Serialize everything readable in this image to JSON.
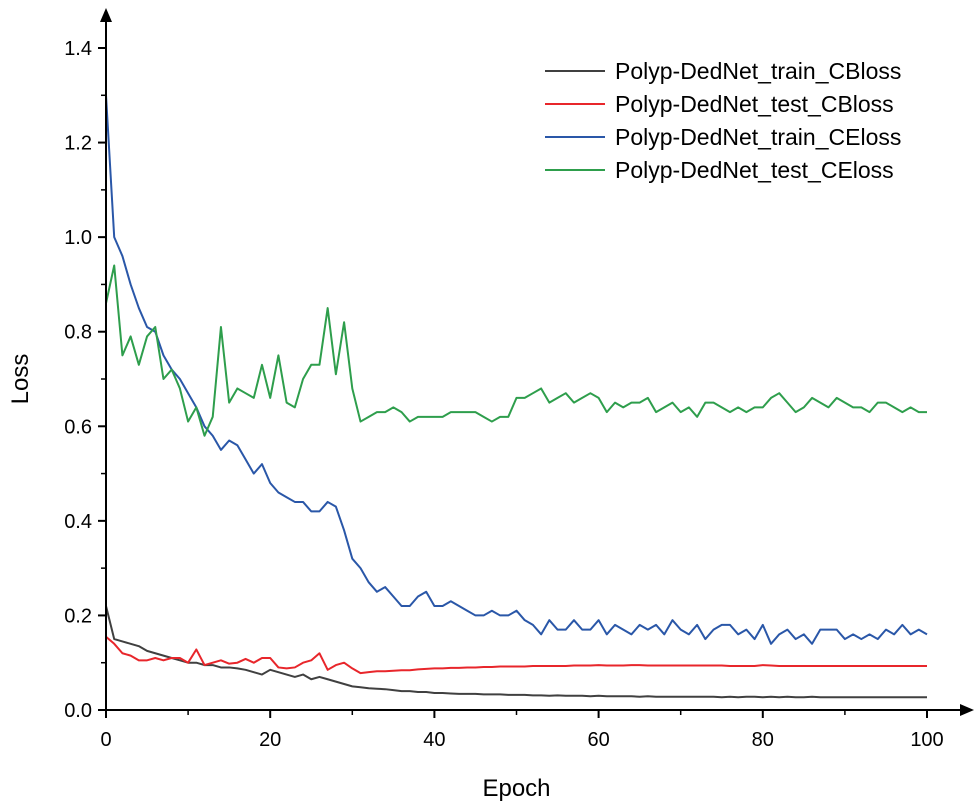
{
  "chart_data": {
    "type": "line",
    "title": "",
    "xlabel": "Epoch",
    "ylabel": "Loss",
    "xlim": [
      0,
      100
    ],
    "ylim": [
      0,
      1.4
    ],
    "xticks": [
      0,
      20,
      40,
      60,
      80,
      100
    ],
    "xtick_labels": [
      "0",
      "20",
      "40",
      "60",
      "80",
      "100"
    ],
    "yticks": [
      0,
      0.2,
      0.4,
      0.6,
      0.8,
      1.0,
      1.2,
      1.4
    ],
    "ytick_labels": [
      "0.0",
      "0.2",
      "0.4",
      "0.6",
      "0.8",
      "1.0",
      "1.2",
      "1.4"
    ],
    "grid": false,
    "legend_position": "top-right",
    "x": [
      0,
      1,
      2,
      3,
      4,
      5,
      6,
      7,
      8,
      9,
      10,
      11,
      12,
      13,
      14,
      15,
      16,
      17,
      18,
      19,
      20,
      21,
      22,
      23,
      24,
      25,
      26,
      27,
      28,
      29,
      30,
      31,
      32,
      33,
      34,
      35,
      36,
      37,
      38,
      39,
      40,
      41,
      42,
      43,
      44,
      45,
      46,
      47,
      48,
      49,
      50,
      51,
      52,
      53,
      54,
      55,
      56,
      57,
      58,
      59,
      60,
      61,
      62,
      63,
      64,
      65,
      66,
      67,
      68,
      69,
      70,
      71,
      72,
      73,
      74,
      75,
      76,
      77,
      78,
      79,
      80,
      81,
      82,
      83,
      84,
      85,
      86,
      87,
      88,
      89,
      90,
      91,
      92,
      93,
      94,
      95,
      96,
      97,
      98,
      99,
      100
    ],
    "series": [
      {
        "name": "Polyp-DedNet_train_CBloss",
        "color": "#404040",
        "values": [
          0.22,
          0.15,
          0.145,
          0.14,
          0.135,
          0.125,
          0.12,
          0.115,
          0.11,
          0.105,
          0.1,
          0.1,
          0.095,
          0.095,
          0.09,
          0.09,
          0.088,
          0.085,
          0.08,
          0.075,
          0.085,
          0.08,
          0.075,
          0.07,
          0.075,
          0.065,
          0.07,
          0.065,
          0.06,
          0.055,
          0.05,
          0.048,
          0.046,
          0.045,
          0.044,
          0.042,
          0.04,
          0.04,
          0.038,
          0.038,
          0.036,
          0.036,
          0.035,
          0.034,
          0.034,
          0.034,
          0.033,
          0.033,
          0.033,
          0.032,
          0.032,
          0.032,
          0.031,
          0.031,
          0.03,
          0.031,
          0.03,
          0.03,
          0.03,
          0.029,
          0.03,
          0.029,
          0.029,
          0.029,
          0.029,
          0.028,
          0.029,
          0.028,
          0.028,
          0.028,
          0.028,
          0.028,
          0.028,
          0.028,
          0.028,
          0.027,
          0.028,
          0.027,
          0.028,
          0.028,
          0.027,
          0.028,
          0.027,
          0.028,
          0.027,
          0.027,
          0.028,
          0.027,
          0.027,
          0.027,
          0.027,
          0.027,
          0.027,
          0.027,
          0.027,
          0.027,
          0.027,
          0.027,
          0.027,
          0.027,
          0.027
        ]
      },
      {
        "name": "Polyp-DedNet_test_CBloss",
        "color": "#e8262b",
        "values": [
          0.155,
          0.14,
          0.12,
          0.115,
          0.105,
          0.105,
          0.11,
          0.105,
          0.11,
          0.11,
          0.1,
          0.128,
          0.095,
          0.1,
          0.105,
          0.098,
          0.1,
          0.108,
          0.1,
          0.11,
          0.11,
          0.09,
          0.088,
          0.09,
          0.1,
          0.105,
          0.12,
          0.085,
          0.095,
          0.1,
          0.088,
          0.078,
          0.08,
          0.082,
          0.082,
          0.083,
          0.084,
          0.084,
          0.086,
          0.087,
          0.088,
          0.088,
          0.089,
          0.089,
          0.09,
          0.09,
          0.091,
          0.091,
          0.092,
          0.092,
          0.092,
          0.092,
          0.093,
          0.093,
          0.093,
          0.093,
          0.093,
          0.094,
          0.094,
          0.094,
          0.095,
          0.094,
          0.094,
          0.094,
          0.095,
          0.095,
          0.094,
          0.094,
          0.094,
          0.094,
          0.094,
          0.094,
          0.094,
          0.094,
          0.094,
          0.094,
          0.093,
          0.093,
          0.093,
          0.093,
          0.095,
          0.094,
          0.093,
          0.093,
          0.093,
          0.093,
          0.093,
          0.093,
          0.093,
          0.093,
          0.093,
          0.093,
          0.093,
          0.093,
          0.093,
          0.093,
          0.093,
          0.093,
          0.093,
          0.093,
          0.093
        ]
      },
      {
        "name": "Polyp-DedNet_train_CEloss",
        "color": "#2a57a8",
        "values": [
          1.3,
          1.0,
          0.96,
          0.9,
          0.85,
          0.81,
          0.8,
          0.75,
          0.72,
          0.7,
          0.67,
          0.64,
          0.6,
          0.58,
          0.55,
          0.57,
          0.56,
          0.53,
          0.5,
          0.52,
          0.48,
          0.46,
          0.45,
          0.44,
          0.44,
          0.42,
          0.42,
          0.44,
          0.43,
          0.38,
          0.32,
          0.3,
          0.27,
          0.25,
          0.26,
          0.24,
          0.22,
          0.22,
          0.24,
          0.25,
          0.22,
          0.22,
          0.23,
          0.22,
          0.21,
          0.2,
          0.2,
          0.21,
          0.2,
          0.2,
          0.21,
          0.19,
          0.18,
          0.16,
          0.19,
          0.17,
          0.17,
          0.19,
          0.17,
          0.17,
          0.19,
          0.16,
          0.18,
          0.17,
          0.16,
          0.18,
          0.17,
          0.18,
          0.16,
          0.19,
          0.17,
          0.16,
          0.18,
          0.15,
          0.17,
          0.18,
          0.18,
          0.16,
          0.17,
          0.15,
          0.18,
          0.14,
          0.16,
          0.17,
          0.15,
          0.16,
          0.14,
          0.17,
          0.17,
          0.17,
          0.15,
          0.16,
          0.15,
          0.16,
          0.15,
          0.17,
          0.16,
          0.18,
          0.16,
          0.17,
          0.16
        ]
      },
      {
        "name": "Polyp-DedNet_test_CEloss",
        "color": "#2e9e4c",
        "values": [
          0.86,
          0.94,
          0.75,
          0.79,
          0.73,
          0.79,
          0.81,
          0.7,
          0.72,
          0.68,
          0.61,
          0.64,
          0.58,
          0.62,
          0.81,
          0.65,
          0.68,
          0.67,
          0.66,
          0.73,
          0.66,
          0.75,
          0.65,
          0.64,
          0.7,
          0.73,
          0.73,
          0.85,
          0.71,
          0.82,
          0.68,
          0.61,
          0.62,
          0.63,
          0.63,
          0.64,
          0.63,
          0.61,
          0.62,
          0.62,
          0.62,
          0.62,
          0.63,
          0.63,
          0.63,
          0.63,
          0.62,
          0.61,
          0.62,
          0.62,
          0.66,
          0.66,
          0.67,
          0.68,
          0.65,
          0.66,
          0.67,
          0.65,
          0.66,
          0.67,
          0.66,
          0.63,
          0.65,
          0.64,
          0.65,
          0.65,
          0.66,
          0.63,
          0.64,
          0.65,
          0.63,
          0.64,
          0.62,
          0.65,
          0.65,
          0.64,
          0.63,
          0.64,
          0.63,
          0.64,
          0.64,
          0.66,
          0.67,
          0.65,
          0.63,
          0.64,
          0.66,
          0.65,
          0.64,
          0.66,
          0.65,
          0.64,
          0.64,
          0.63,
          0.65,
          0.65,
          0.64,
          0.63,
          0.64,
          0.63,
          0.63
        ]
      }
    ]
  }
}
